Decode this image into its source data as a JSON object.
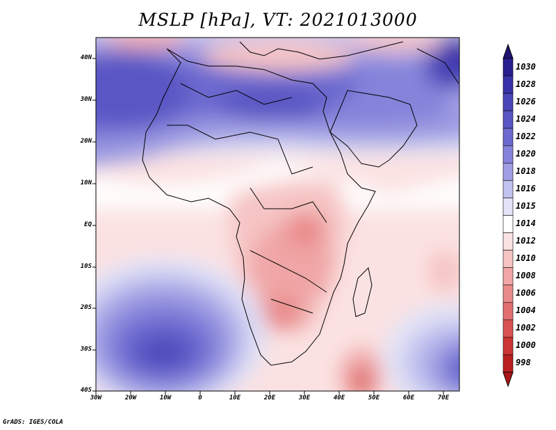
{
  "title": "MSLP [hPa], VT: 2021013000",
  "credit": "GrADS: IGES/COLA",
  "map": {
    "lat_labels": [
      "40N",
      "30N",
      "20N",
      "10N",
      "EQ",
      "10S",
      "20S",
      "30S",
      "40S"
    ],
    "lon_labels": [
      "30W",
      "20W",
      "10W",
      "0",
      "10E",
      "20E",
      "30E",
      "40E",
      "50E",
      "60E",
      "70E"
    ],
    "extent": {
      "lon_min": -30,
      "lon_max": 75,
      "lat_min": -40,
      "lat_max": 45
    }
  },
  "colorbar": {
    "levels": [
      "1030",
      "1028",
      "1026",
      "1024",
      "1022",
      "1020",
      "1018",
      "1016",
      "1015",
      "1014",
      "1012",
      "1010",
      "1008",
      "1006",
      "1004",
      "1002",
      "1000",
      "998"
    ],
    "colors": [
      "#2a1f8f",
      "#3a32a8",
      "#4b46b8",
      "#5a56c4",
      "#6c69cf",
      "#8583da",
      "#a09fe3",
      "#c2c2ef",
      "#e2e3f7",
      "#ffffff",
      "#fbe2e2",
      "#f6c4c4",
      "#f0a6a6",
      "#e98b8b",
      "#e26f6f",
      "#d85252",
      "#cc3535",
      "#b81f1f"
    ],
    "top_arrow": "#1e1470",
    "bottom_arrow": "#b01818"
  }
}
